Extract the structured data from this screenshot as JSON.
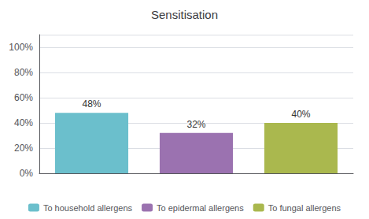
{
  "chart_data": {
    "type": "bar",
    "title": "Sensitisation",
    "categories": [
      "To household allergens",
      "To epidermal allergens",
      "To fungal allergens"
    ],
    "values": [
      48,
      32,
      40
    ],
    "value_labels": [
      "48%",
      "32%",
      "40%"
    ],
    "colors": [
      "#6bbfcc",
      "#9b72b0",
      "#aab84e"
    ],
    "ylim": [
      0,
      110
    ],
    "yticks": [
      {
        "value": 0,
        "label": "0%"
      },
      {
        "value": 20,
        "label": "20%"
      },
      {
        "value": 40,
        "label": "40%"
      },
      {
        "value": 60,
        "label": "60%"
      },
      {
        "value": 80,
        "label": "80%"
      },
      {
        "value": 100,
        "label": "100%"
      }
    ],
    "grid": true,
    "legend": "bottom",
    "data_labels": true,
    "tick_labels": "y"
  }
}
